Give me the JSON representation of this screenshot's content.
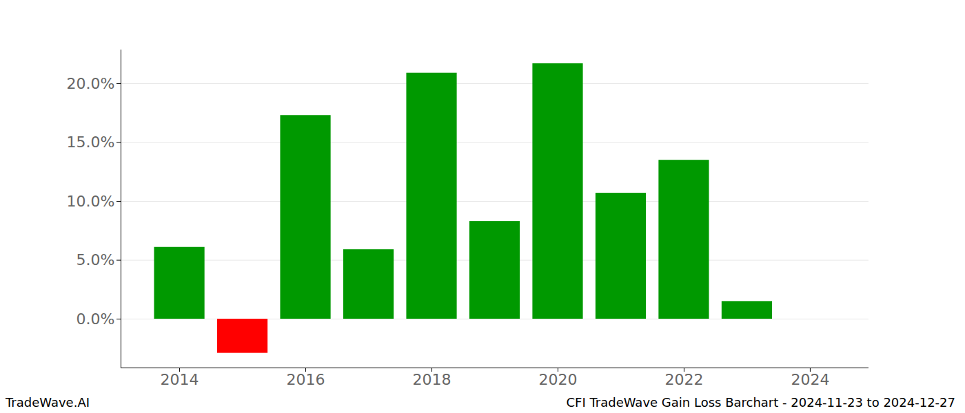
{
  "chart_data": {
    "type": "bar",
    "title": "CFI TradeWave Gain Loss Barchart - 2024-11-23 to 2024-12-27",
    "watermark": "TradeWave.AI",
    "x": [
      2014,
      2015,
      2016,
      2017,
      2018,
      2019,
      2020,
      2021,
      2022,
      2023
    ],
    "values": [
      6.1,
      -2.9,
      17.3,
      5.9,
      20.9,
      8.3,
      21.7,
      10.7,
      13.5,
      1.5
    ],
    "colors": [
      "#009900",
      "#ff0000",
      "#009900",
      "#009900",
      "#009900",
      "#009900",
      "#009900",
      "#009900",
      "#009900",
      "#009900"
    ],
    "xlim": [
      2013.07,
      2024.93
    ],
    "xticks": [
      2014,
      2016,
      2018,
      2020,
      2022,
      2024
    ],
    "ylim": [
      -4.15,
      22.87
    ],
    "yticks": [
      {
        "value": 0,
        "label": "0.0%"
      },
      {
        "value": 5,
        "label": "5.0%"
      },
      {
        "value": 10,
        "label": "10.0%"
      },
      {
        "value": 15,
        "label": "15.0%"
      },
      {
        "value": 20,
        "label": "20.0%"
      }
    ],
    "grid": true
  }
}
